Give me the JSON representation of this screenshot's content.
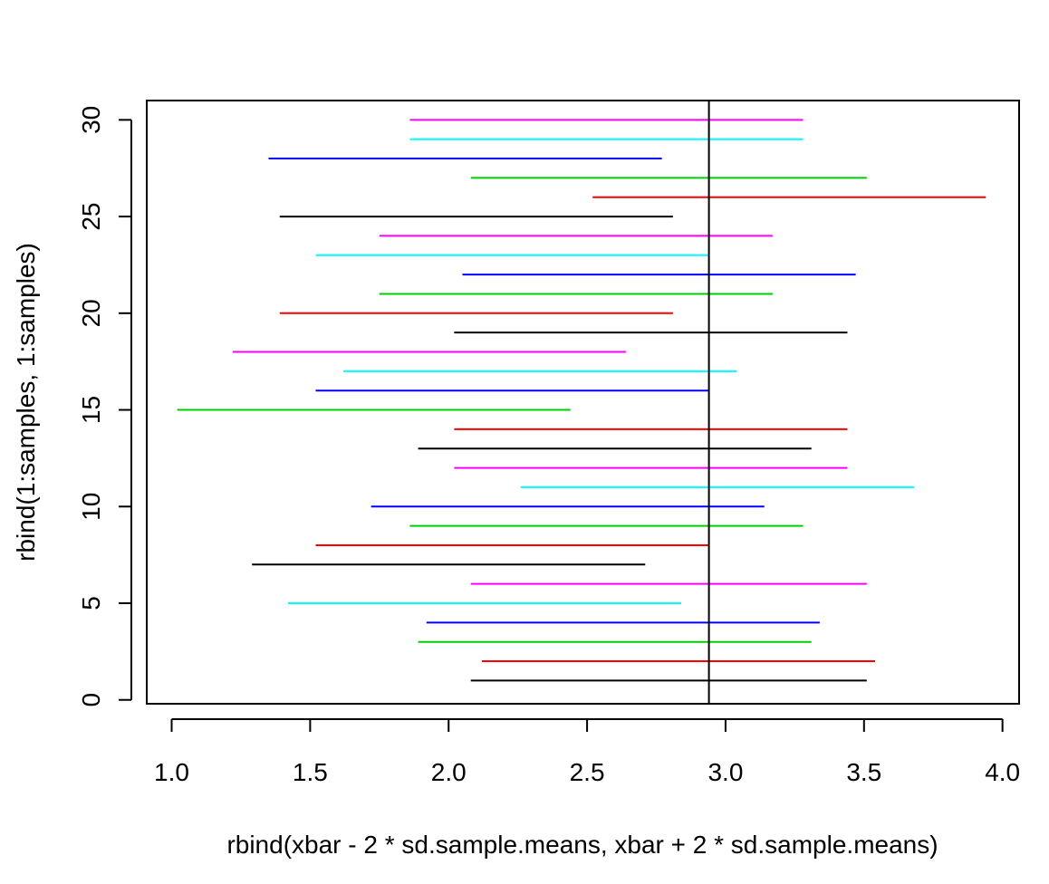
{
  "chart_data": {
    "type": "line",
    "title": "",
    "xlabel": "rbind(xbar - 2 * sd.sample.means, xbar + 2 * sd.sample.means)",
    "ylabel": "rbind(1:samples, 1:samples)",
    "xlim": [
      0.91,
      4.06
    ],
    "ylim": [
      -0.2,
      31.0
    ],
    "x_ticks": [
      1.0,
      1.5,
      2.0,
      2.5,
      3.0,
      3.5,
      4.0
    ],
    "x_tick_labels": [
      "1.0",
      "1.5",
      "2.0",
      "2.5",
      "3.0",
      "3.5",
      "4.0"
    ],
    "y_ticks": [
      0,
      5,
      10,
      15,
      20,
      25,
      30
    ],
    "y_tick_labels": [
      "0",
      "5",
      "10",
      "15",
      "20",
      "25",
      "30"
    ],
    "grid": false,
    "reference_line": {
      "x": 2.94,
      "color": "#000000"
    },
    "series": [
      {
        "y": 1,
        "x": [
          2.08,
          3.51
        ],
        "color": "#000000"
      },
      {
        "y": 2,
        "x": [
          2.12,
          3.54
        ],
        "color": "#ff0000"
      },
      {
        "y": 3,
        "x": [
          1.89,
          3.31
        ],
        "color": "#00cd00"
      },
      {
        "y": 4,
        "x": [
          1.92,
          3.34
        ],
        "color": "#0000ff"
      },
      {
        "y": 5,
        "x": [
          1.42,
          2.84
        ],
        "color": "#00ffff"
      },
      {
        "y": 6,
        "x": [
          2.08,
          3.51
        ],
        "color": "#ff00ff"
      },
      {
        "y": 7,
        "x": [
          1.29,
          2.71
        ],
        "color": "#000000"
      },
      {
        "y": 8,
        "x": [
          1.52,
          2.94
        ],
        "color": "#ff0000"
      },
      {
        "y": 9,
        "x": [
          1.86,
          3.28
        ],
        "color": "#00cd00"
      },
      {
        "y": 10,
        "x": [
          1.72,
          3.14
        ],
        "color": "#0000ff"
      },
      {
        "y": 11,
        "x": [
          2.26,
          3.68
        ],
        "color": "#00ffff"
      },
      {
        "y": 12,
        "x": [
          2.02,
          3.44
        ],
        "color": "#ff00ff"
      },
      {
        "y": 13,
        "x": [
          1.89,
          3.31
        ],
        "color": "#000000"
      },
      {
        "y": 14,
        "x": [
          2.02,
          3.44
        ],
        "color": "#ff0000"
      },
      {
        "y": 15,
        "x": [
          1.02,
          2.44
        ],
        "color": "#00cd00"
      },
      {
        "y": 16,
        "x": [
          1.52,
          2.94
        ],
        "color": "#0000ff"
      },
      {
        "y": 17,
        "x": [
          1.62,
          3.04
        ],
        "color": "#00ffff"
      },
      {
        "y": 18,
        "x": [
          1.22,
          2.64
        ],
        "color": "#ff00ff"
      },
      {
        "y": 19,
        "x": [
          2.02,
          3.44
        ],
        "color": "#000000"
      },
      {
        "y": 20,
        "x": [
          1.39,
          2.81
        ],
        "color": "#ff0000"
      },
      {
        "y": 21,
        "x": [
          1.75,
          3.17
        ],
        "color": "#00cd00"
      },
      {
        "y": 22,
        "x": [
          2.05,
          3.47
        ],
        "color": "#0000ff"
      },
      {
        "y": 23,
        "x": [
          1.52,
          2.94
        ],
        "color": "#00ffff"
      },
      {
        "y": 24,
        "x": [
          1.75,
          3.17
        ],
        "color": "#ff00ff"
      },
      {
        "y": 25,
        "x": [
          1.39,
          2.81
        ],
        "color": "#000000"
      },
      {
        "y": 26,
        "x": [
          2.52,
          3.94
        ],
        "color": "#ff0000"
      },
      {
        "y": 27,
        "x": [
          2.08,
          3.51
        ],
        "color": "#00cd00"
      },
      {
        "y": 28,
        "x": [
          1.35,
          2.77
        ],
        "color": "#0000ff"
      },
      {
        "y": 29,
        "x": [
          1.86,
          3.28
        ],
        "color": "#00ffff"
      },
      {
        "y": 30,
        "x": [
          1.86,
          3.28
        ],
        "color": "#ff00ff"
      }
    ]
  }
}
